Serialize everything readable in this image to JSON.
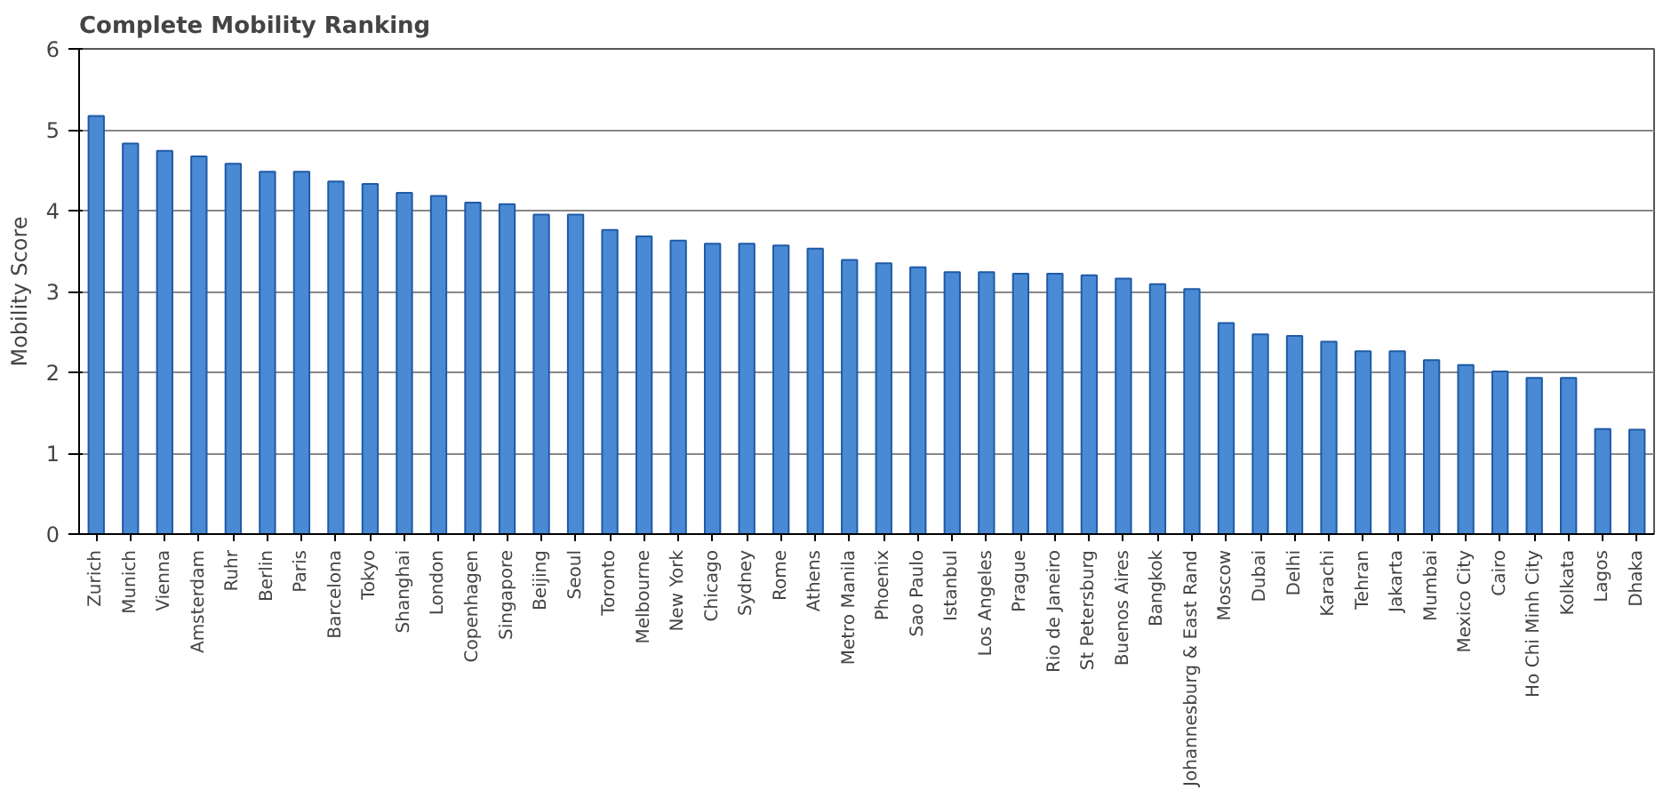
{
  "chart_data": {
    "type": "bar",
    "title": "Complete Mobility Ranking",
    "ylabel": "Mobility Score",
    "categories": [
      "Zurich",
      "Munich",
      "Vienna",
      "Amsterdam",
      "Ruhr",
      "Berlin",
      "Paris",
      "Barcelona",
      "Tokyo",
      "Shanghai",
      "London",
      "Copenhagen",
      "Singapore",
      "Beijing",
      "Seoul",
      "Toronto",
      "Melbourne",
      "New York",
      "Chicago",
      "Sydney",
      "Rome",
      "Athens",
      "Metro Manila",
      "Phoenix",
      "Sao Paulo",
      "Istanbul",
      "Los Angeles",
      "Prague",
      "Rio de Janeiro",
      "St Petersburg",
      "Buenos Aires",
      "Bangkok",
      "Johannesburg & East Rand",
      "Moscow",
      "Dubai",
      "Delhi",
      "Karachi",
      "Tehran",
      "Jakarta",
      "Mumbai",
      "Mexico City",
      "Cairo",
      "Ho Chi Minh City",
      "Kolkata",
      "Lagos",
      "Dhaka"
    ],
    "values": [
      5.17,
      4.83,
      4.74,
      4.67,
      4.58,
      4.48,
      4.48,
      4.36,
      4.33,
      4.22,
      4.18,
      4.1,
      4.08,
      3.95,
      3.95,
      3.76,
      3.68,
      3.63,
      3.59,
      3.59,
      3.57,
      3.53,
      3.39,
      3.35,
      3.3,
      3.24,
      3.24,
      3.22,
      3.22,
      3.2,
      3.16,
      3.09,
      3.03,
      2.61,
      2.47,
      2.45,
      2.38,
      2.26,
      2.26,
      2.15,
      2.09,
      2.01,
      1.93,
      1.93,
      1.3,
      1.29
    ],
    "color": "#4a8ad4",
    "ylim": [
      0,
      6
    ],
    "yticks": [
      0,
      1,
      2,
      3,
      4,
      5,
      6
    ],
    "grid": "y"
  }
}
